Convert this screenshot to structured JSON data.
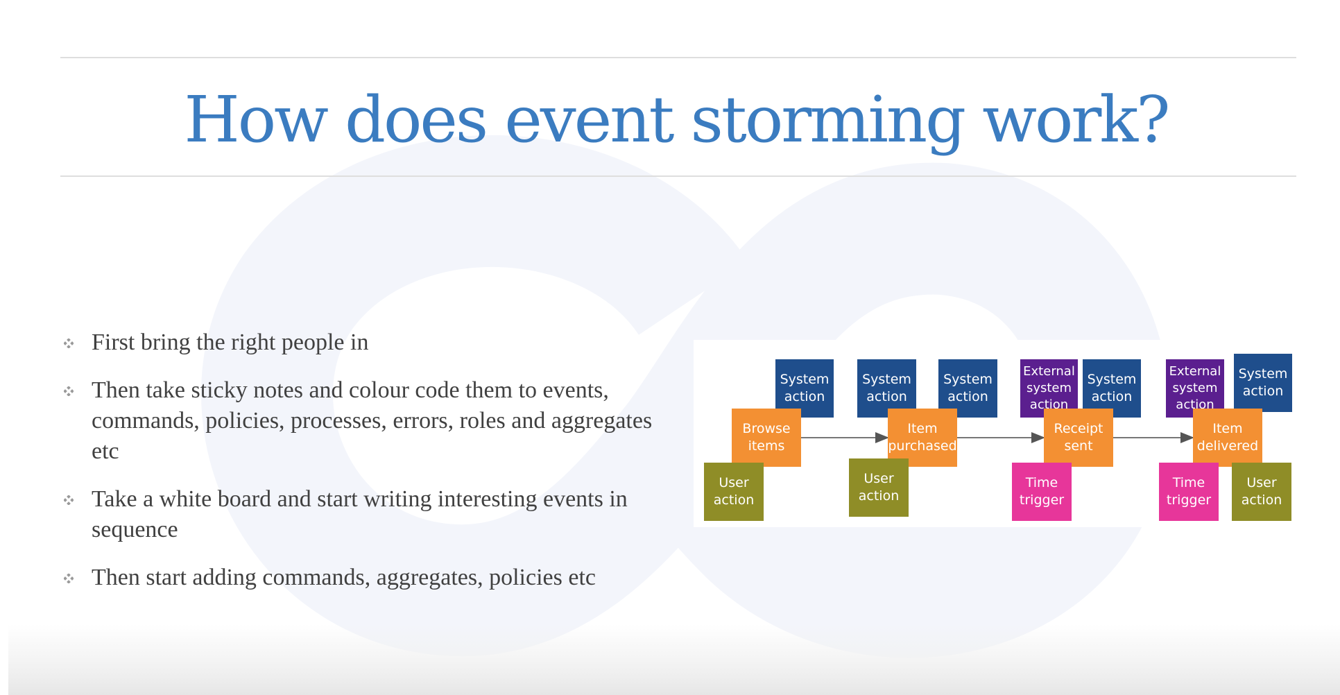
{
  "slide": {
    "title": "How does event storming work?",
    "bullets": [
      "First bring the right people in",
      "Then take sticky notes and colour code them to events, commands, policies, processes, errors, roles and aggregates etc",
      "Take a white board and start writing interesting events in sequence",
      "Then start adding commands, aggregates, policies etc"
    ]
  },
  "diagram": {
    "notes": [
      {
        "text": "System\naction",
        "color": "#1f4e8c"
      },
      {
        "text": "Browse\nitems",
        "color": "#f39033"
      },
      {
        "text": "User\naction",
        "color": "#8f8d27"
      },
      {
        "text": "System\naction",
        "color": "#1f4e8c"
      },
      {
        "text": "System\naction",
        "color": "#1f4e8c"
      },
      {
        "text": "Item\npurchased",
        "color": "#f39033"
      },
      {
        "text": "User\naction",
        "color": "#8f8d27"
      },
      {
        "text": "External\nsystem\naction",
        "color": "#5b1f8f"
      },
      {
        "text": "System\naction",
        "color": "#1f4e8c"
      },
      {
        "text": "Receipt\nsent",
        "color": "#f39033"
      },
      {
        "text": "Time\ntrigger",
        "color": "#e7369a"
      },
      {
        "text": "External\nsystem\naction",
        "color": "#5b1f8f"
      },
      {
        "text": "System\naction",
        "color": "#1f4e8c"
      },
      {
        "text": "Item\ndelivered",
        "color": "#f39033"
      },
      {
        "text": "Time\ntrigger",
        "color": "#e7369a"
      },
      {
        "text": "User\naction",
        "color": "#8f8d27"
      }
    ]
  },
  "colors": {
    "title": "#3b7cc0",
    "body_text": "#404040",
    "watermark": "#f3f5fb",
    "rule": "#dedede"
  },
  "icons": {
    "bullet": "four-diamond-bullet-icon",
    "watermark": "infinity-logo-icon"
  }
}
